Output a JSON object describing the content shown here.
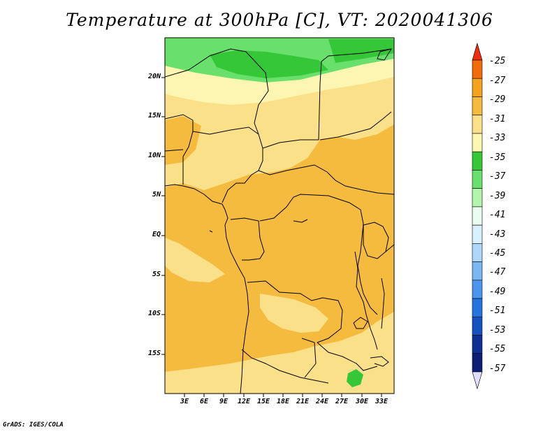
{
  "title": "Temperature at 300hPa [C], VT: 2020041306",
  "credit": "GrADS: IGES/COLA",
  "lat_labels": [
    "20N",
    "15N",
    "10N",
    "5N",
    "EQ",
    "5S",
    "10S",
    "15S"
  ],
  "lon_labels": [
    "3E",
    "6E",
    "9E",
    "12E",
    "15E",
    "18E",
    "21E",
    "24E",
    "27E",
    "30E",
    "33E"
  ],
  "colorbar": {
    "labels": [
      "-25",
      "-27",
      "-29",
      "-31",
      "-33",
      "-35",
      "-37",
      "-39",
      "-41",
      "-43",
      "-45",
      "-47",
      "-49",
      "-51",
      "-53",
      "-55",
      "-57"
    ],
    "colors": [
      "#ef2c10",
      "#f26c0c",
      "#f3a31d",
      "#f5bb3e",
      "#fbe08a",
      "#fdf6b3",
      "#35c738",
      "#69e06c",
      "#b3f5ad",
      "#e9fdf0",
      "#d9f0ff",
      "#add8f9",
      "#7cb7f2",
      "#4a96ec",
      "#2573dd",
      "#1453bf",
      "#0d3193",
      "#0c1f75",
      "#e2dcff"
    ]
  },
  "map": {
    "domain": "Central & Southern Africa, lon 0E–35E, lat 20S–25N",
    "field_colors": {
      "warm": "#f5bb3e",
      "mid": "#fbe08a",
      "cool": "#fdf6b3",
      "green_dark": "#35c738",
      "green_light": "#69e06c"
    }
  }
}
